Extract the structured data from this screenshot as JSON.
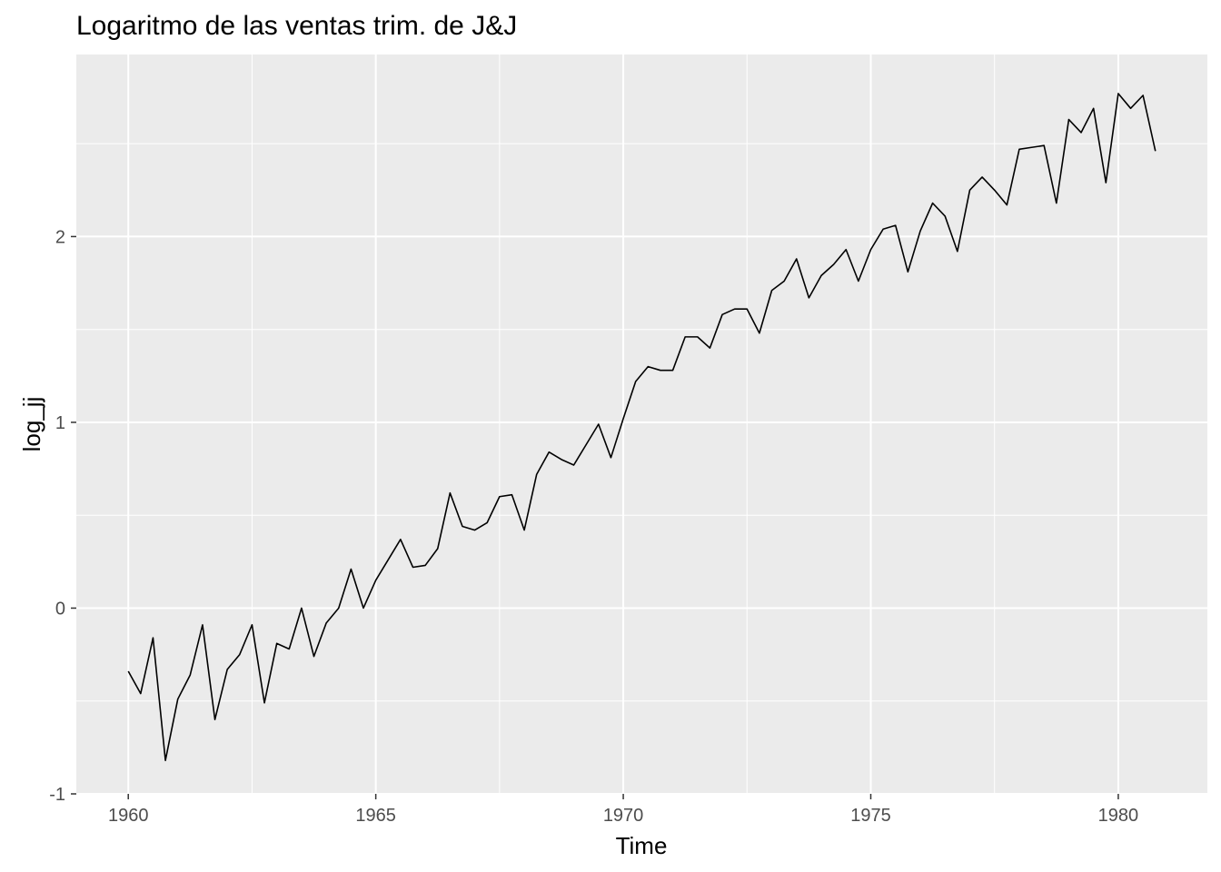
{
  "chart_data": {
    "type": "line",
    "title": "Logaritmo de las ventas trim. de J&J",
    "xlabel": "Time",
    "ylabel": "log_jj",
    "xlim": [
      1958.95,
      1981.8
    ],
    "ylim": [
      -1.0,
      2.98
    ],
    "x_ticks": [
      1960,
      1965,
      1970,
      1975,
      1980
    ],
    "x_tick_labels": [
      "1960",
      "1965",
      "1970",
      "1975",
      "1980"
    ],
    "y_ticks": [
      -1,
      0,
      1,
      2
    ],
    "y_tick_labels": [
      "-1",
      "0",
      "1",
      "2"
    ],
    "grid": true,
    "panel_background": "#ebebeb",
    "grid_color": "#ffffff",
    "line_color": "#000000",
    "series": [
      {
        "x_start": 1960.0,
        "x_step": 0.25,
        "values": [
          -0.34,
          -0.46,
          -0.16,
          -0.82,
          -0.49,
          -0.36,
          -0.09,
          -0.6,
          -0.33,
          -0.25,
          -0.09,
          -0.51,
          -0.19,
          -0.22,
          0.0,
          -0.26,
          -0.08,
          0.0,
          0.21,
          0.0,
          0.15,
          0.26,
          0.37,
          0.22,
          0.23,
          0.32,
          0.62,
          0.44,
          0.42,
          0.46,
          0.6,
          0.61,
          0.42,
          0.72,
          0.84,
          0.8,
          0.77,
          0.88,
          0.99,
          0.81,
          1.02,
          1.22,
          1.3,
          1.28,
          1.28,
          1.46,
          1.46,
          1.4,
          1.58,
          1.61,
          1.61,
          1.48,
          1.71,
          1.76,
          1.88,
          1.67,
          1.79,
          1.85,
          1.93,
          1.76,
          1.93,
          2.04,
          2.06,
          1.81,
          2.03,
          2.18,
          2.11,
          1.92,
          2.25,
          2.32,
          2.25,
          2.17,
          2.47,
          2.48,
          2.49,
          2.18,
          2.63,
          2.56,
          2.69,
          2.29,
          2.77,
          2.69,
          2.76,
          2.46
        ]
      }
    ]
  }
}
